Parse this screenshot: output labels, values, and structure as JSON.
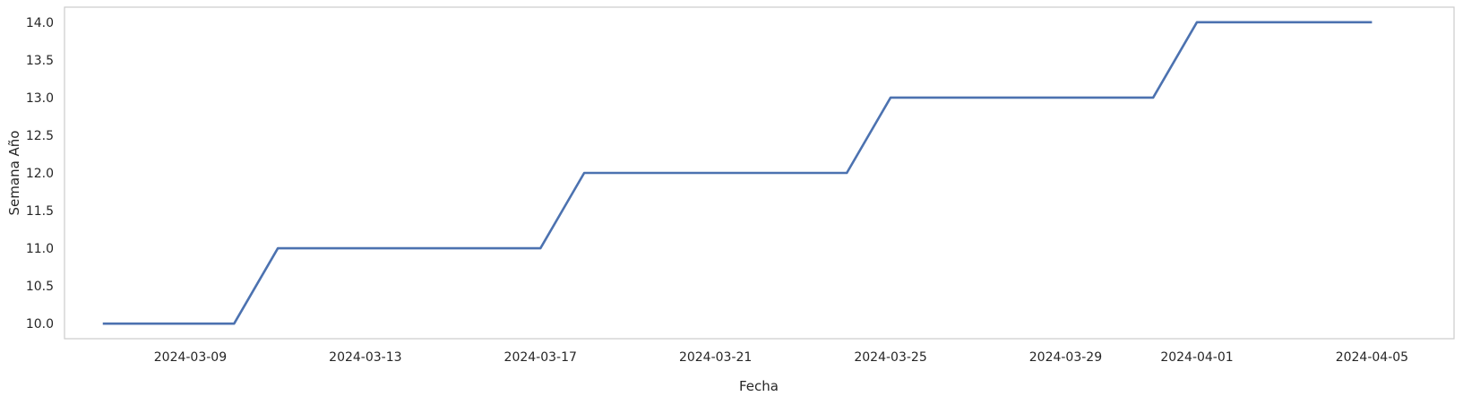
{
  "chart_data": {
    "type": "line",
    "title": "",
    "xlabel": "Fecha",
    "ylabel": "Semana Año",
    "grid": false,
    "line_color": "#4c72b0",
    "frame_color": "#cccccc",
    "x_ticks": [
      "2024-03-09",
      "2024-03-13",
      "2024-03-17",
      "2024-03-21",
      "2024-03-25",
      "2024-03-29",
      "2024-04-01",
      "2024-04-05"
    ],
    "y_ticks": [
      "10.0",
      "10.5",
      "11.0",
      "11.5",
      "12.0",
      "12.5",
      "13.0",
      "13.5",
      "14.0"
    ],
    "xlim": [
      "2024-03-06T03:00",
      "2024-04-06T21:00"
    ],
    "ylim": [
      9.8,
      14.2
    ],
    "series": [
      {
        "x": [
          "2024-03-07",
          "2024-03-10",
          "2024-03-11",
          "2024-03-17",
          "2024-03-18",
          "2024-03-24",
          "2024-03-25",
          "2024-03-31",
          "2024-04-01",
          "2024-04-05"
        ],
        "values": [
          10,
          10,
          11,
          11,
          12,
          12,
          13,
          13,
          14,
          14
        ]
      }
    ]
  }
}
